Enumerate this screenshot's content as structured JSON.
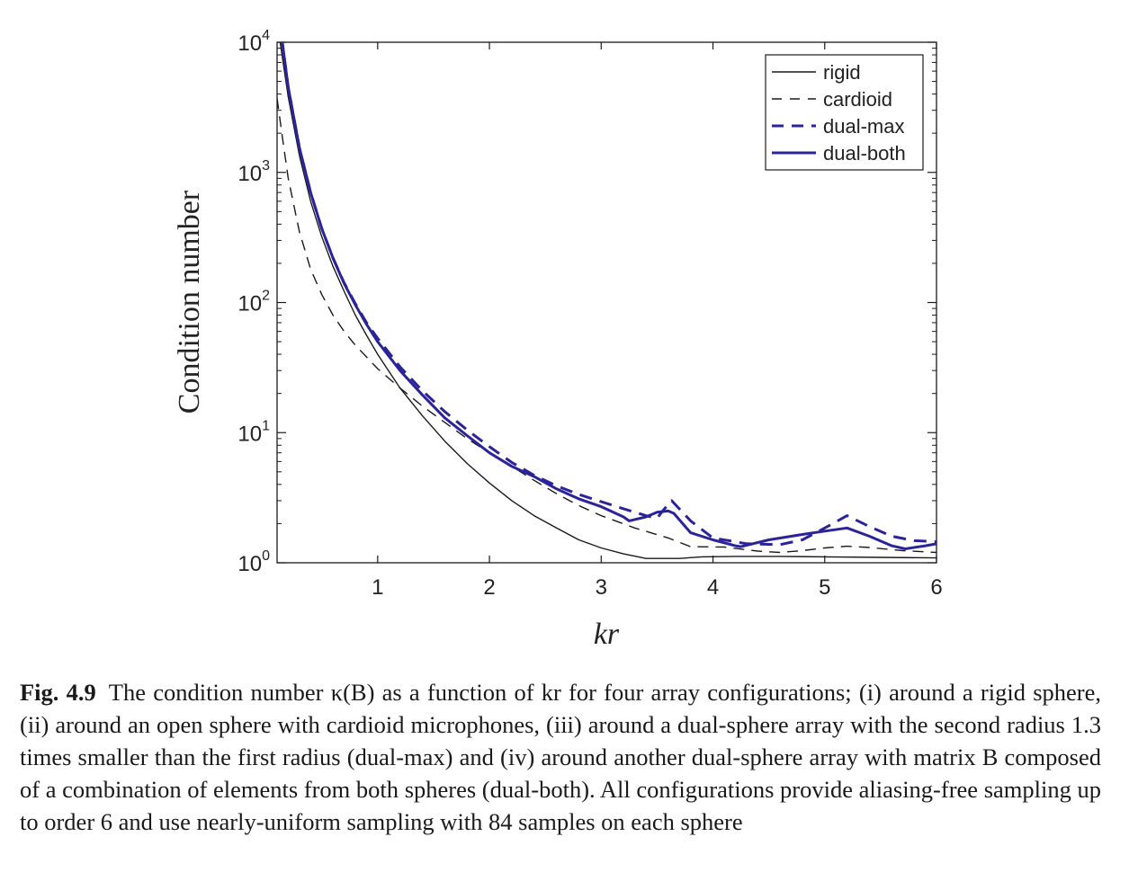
{
  "chart_data": {
    "type": "line",
    "xlabel": "kr",
    "ylabel": "Condition number",
    "xlim": [
      0.1,
      6
    ],
    "ylim": [
      1,
      10000
    ],
    "yscale": "log",
    "xticks": [
      1,
      2,
      3,
      4,
      5,
      6
    ],
    "yticks": [
      {
        "value": 1,
        "base": "10",
        "exp": "0"
      },
      {
        "value": 10,
        "base": "10",
        "exp": "1"
      },
      {
        "value": 100,
        "base": "10",
        "exp": "2"
      },
      {
        "value": 1000,
        "base": "10",
        "exp": "3"
      },
      {
        "value": 10000,
        "base": "10",
        "exp": "4"
      }
    ],
    "grid": false,
    "legend_position": "top-right",
    "series": [
      {
        "name": "rigid",
        "color": "#1a1a1a",
        "style": "solid",
        "width": 1.4,
        "points": [
          [
            0.12,
            11000
          ],
          [
            0.2,
            3800
          ],
          [
            0.3,
            1350
          ],
          [
            0.4,
            600
          ],
          [
            0.5,
            320
          ],
          [
            0.6,
            190
          ],
          [
            0.7,
            122
          ],
          [
            0.8,
            80
          ],
          [
            0.9,
            56
          ],
          [
            1.0,
            40
          ],
          [
            1.2,
            22
          ],
          [
            1.4,
            13.5
          ],
          [
            1.6,
            8.6
          ],
          [
            1.8,
            5.8
          ],
          [
            2.0,
            4.1
          ],
          [
            2.2,
            3.0
          ],
          [
            2.4,
            2.3
          ],
          [
            2.6,
            1.85
          ],
          [
            2.8,
            1.5
          ],
          [
            3.0,
            1.3
          ],
          [
            3.2,
            1.17
          ],
          [
            3.4,
            1.08
          ],
          [
            3.7,
            1.08
          ],
          [
            3.9,
            1.11
          ],
          [
            4.2,
            1.12
          ],
          [
            4.6,
            1.12
          ],
          [
            5.0,
            1.11
          ],
          [
            5.5,
            1.1
          ],
          [
            6.0,
            1.09
          ]
        ]
      },
      {
        "name": "cardioid",
        "color": "#1a1a1a",
        "style": "dashed",
        "width": 1.4,
        "points": [
          [
            0.1,
            3700
          ],
          [
            0.15,
            1800
          ],
          [
            0.2,
            900
          ],
          [
            0.3,
            350
          ],
          [
            0.4,
            180
          ],
          [
            0.5,
            115
          ],
          [
            0.6,
            80
          ],
          [
            0.7,
            60
          ],
          [
            0.8,
            47
          ],
          [
            1.0,
            31
          ],
          [
            1.2,
            22
          ],
          [
            1.4,
            16
          ],
          [
            1.6,
            12
          ],
          [
            1.8,
            9
          ],
          [
            2.0,
            7
          ],
          [
            2.2,
            5.5
          ],
          [
            2.4,
            4.3
          ],
          [
            2.6,
            3.4
          ],
          [
            2.8,
            2.75
          ],
          [
            3.0,
            2.3
          ],
          [
            3.3,
            1.85
          ],
          [
            3.6,
            1.55
          ],
          [
            3.8,
            1.33
          ],
          [
            4.1,
            1.32
          ],
          [
            4.4,
            1.23
          ],
          [
            4.6,
            1.2
          ],
          [
            4.8,
            1.24
          ],
          [
            5.0,
            1.3
          ],
          [
            5.2,
            1.34
          ],
          [
            5.4,
            1.31
          ],
          [
            5.7,
            1.24
          ],
          [
            6.0,
            1.2
          ]
        ]
      },
      {
        "name": "dual-max",
        "color": "#2b2499",
        "style": "dashed",
        "width": 3,
        "points": [
          [
            0.14,
            11000
          ],
          [
            0.2,
            4500
          ],
          [
            0.3,
            1550
          ],
          [
            0.4,
            700
          ],
          [
            0.5,
            370
          ],
          [
            0.6,
            220
          ],
          [
            0.7,
            142
          ],
          [
            0.8,
            98
          ],
          [
            0.9,
            70
          ],
          [
            1.0,
            53
          ],
          [
            1.2,
            32
          ],
          [
            1.4,
            21
          ],
          [
            1.6,
            14.5
          ],
          [
            1.8,
            10.5
          ],
          [
            2.0,
            7.8
          ],
          [
            2.2,
            5.9
          ],
          [
            2.4,
            4.7
          ],
          [
            2.6,
            3.9
          ],
          [
            2.8,
            3.35
          ],
          [
            3.0,
            2.95
          ],
          [
            3.2,
            2.6
          ],
          [
            3.4,
            2.3
          ],
          [
            3.5,
            2.2
          ],
          [
            3.55,
            2.5
          ],
          [
            3.63,
            3.0
          ],
          [
            3.8,
            2.1
          ],
          [
            4.0,
            1.55
          ],
          [
            4.3,
            1.4
          ],
          [
            4.6,
            1.38
          ],
          [
            4.8,
            1.5
          ],
          [
            5.0,
            1.85
          ],
          [
            5.2,
            2.3
          ],
          [
            5.4,
            1.9
          ],
          [
            5.6,
            1.6
          ],
          [
            5.8,
            1.48
          ],
          [
            6.0,
            1.45
          ]
        ]
      },
      {
        "name": "dual-both",
        "color": "#2b2499",
        "style": "solid",
        "width": 3,
        "points": [
          [
            0.14,
            11000
          ],
          [
            0.2,
            4500
          ],
          [
            0.3,
            1550
          ],
          [
            0.4,
            700
          ],
          [
            0.5,
            370
          ],
          [
            0.6,
            220
          ],
          [
            0.7,
            140
          ],
          [
            0.8,
            96
          ],
          [
            0.9,
            68
          ],
          [
            1.0,
            50
          ],
          [
            1.2,
            30
          ],
          [
            1.4,
            19.5
          ],
          [
            1.6,
            13
          ],
          [
            1.8,
            9.5
          ],
          [
            2.0,
            7
          ],
          [
            2.2,
            5.5
          ],
          [
            2.4,
            4.6
          ],
          [
            2.6,
            3.7
          ],
          [
            2.8,
            3.1
          ],
          [
            3.0,
            2.7
          ],
          [
            3.2,
            2.25
          ],
          [
            3.25,
            2.1
          ],
          [
            3.4,
            2.25
          ],
          [
            3.5,
            2.45
          ],
          [
            3.6,
            2.5
          ],
          [
            3.65,
            2.4
          ],
          [
            3.8,
            1.7
          ],
          [
            4.0,
            1.5
          ],
          [
            4.2,
            1.35
          ],
          [
            4.25,
            1.33
          ],
          [
            4.5,
            1.5
          ],
          [
            4.8,
            1.65
          ],
          [
            5.0,
            1.75
          ],
          [
            5.2,
            1.85
          ],
          [
            5.4,
            1.6
          ],
          [
            5.6,
            1.35
          ],
          [
            5.72,
            1.28
          ],
          [
            5.9,
            1.35
          ],
          [
            6.0,
            1.4
          ]
        ]
      }
    ]
  },
  "caption": {
    "label": "Fig. 4.9",
    "text": "The condition number κ(B) as a function of kr for four array configurations; (i) around a rigid sphere, (ii) around an open sphere with cardioid microphones, (iii) around a dual-sphere array with the second radius 1.3 times smaller than the first radius (dual-max) and (iv) around another dual-sphere array with matrix B composed of a combination of elements from both spheres (dual-both). All configurations provide aliasing-free sampling up to order 6 and use nearly-uniform sampling with 84 samples on each sphere"
  }
}
